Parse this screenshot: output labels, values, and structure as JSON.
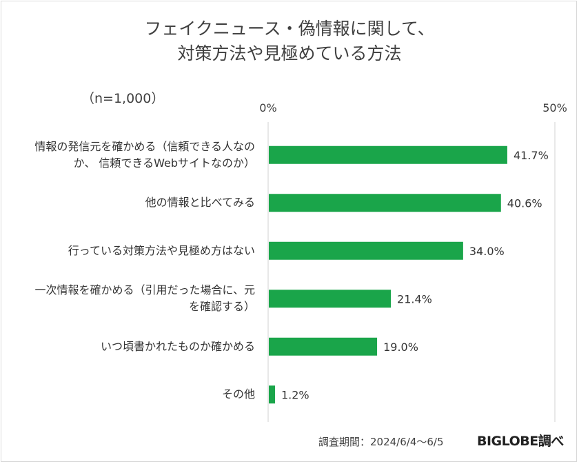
{
  "chart_data": {
    "type": "bar",
    "orientation": "horizontal",
    "title_line1": "フェイクニュース・偽情報に関して、",
    "title_line2": "対策方法や見極めている方法",
    "sample_note": "（n=1,000）",
    "xlim": [
      0,
      50
    ],
    "ticks": [
      "0%",
      "50%"
    ],
    "categories": [
      [
        "情報の発信元を確かめる（信頼できる人なの",
        "か、 信頼できるWebサイトなのか）"
      ],
      [
        "他の情報と比べてみる"
      ],
      [
        "行っている対策方法や見極め方はない"
      ],
      [
        "一次情報を確かめる（引用だった場合に、元",
        "を確認する）"
      ],
      [
        "いつ頃書かれたものか確かめる"
      ],
      [
        "その他"
      ]
    ],
    "values": [
      41.7,
      40.6,
      34.0,
      21.4,
      19.0,
      1.2
    ],
    "value_labels": [
      "41.7%",
      "40.6%",
      "34.0%",
      "21.4%",
      "19.0%",
      "1.2%"
    ],
    "bar_color": "#1aa54a",
    "grid": false
  },
  "footer": {
    "period": "調査期間：2024/6/4～6/5",
    "brand": "BIGLOBE調べ"
  }
}
